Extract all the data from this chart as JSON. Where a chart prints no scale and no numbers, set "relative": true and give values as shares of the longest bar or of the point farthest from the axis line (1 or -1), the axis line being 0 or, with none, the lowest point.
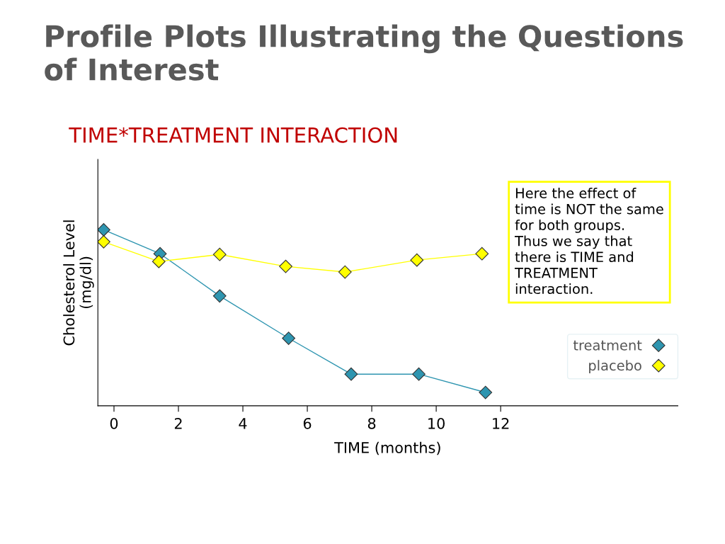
{
  "chart_data": {
    "type": "line",
    "title": "Profile Plots Illustrating the Questions of Interest",
    "subtitle": "TIME*TREATMENT INTERACTION",
    "xlabel": "TIME (months)",
    "ylabel": "Cholesterol Level\n(mg/dl)",
    "relative": true,
    "xlim": [
      -0.5,
      17.5
    ],
    "xticks": [
      0,
      2,
      4,
      6,
      8,
      10,
      12
    ],
    "series": [
      {
        "name": "treatment",
        "color": "#2e95b0",
        "x": [
          -0.32,
          1.43,
          3.28,
          5.42,
          7.36,
          9.46,
          11.53
        ],
        "values": [
          1,
          0.864,
          0.624,
          0.384,
          0.18,
          0.18,
          0.076
        ]
      },
      {
        "name": "placebo",
        "color": "#ffff00",
        "x": [
          -0.32,
          1.39,
          3.28,
          5.33,
          7.17,
          9.4,
          11.42
        ],
        "values": [
          0.932,
          0.82,
          0.86,
          0.792,
          0.76,
          0.828,
          0.864
        ]
      }
    ],
    "marker": "diamond",
    "legend": "right",
    "grid": false,
    "annotations": [
      "Here the effect of\ntime is NOT the same\nfor both groups.\nThus we say that\nthere is TIME and\nTREATMENT\ninteraction."
    ]
  }
}
